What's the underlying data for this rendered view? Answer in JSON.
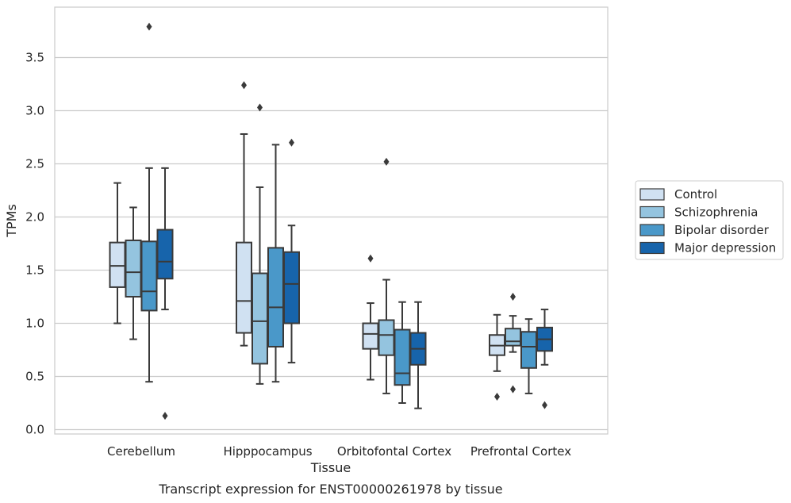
{
  "chart_data": {
    "type": "box",
    "title": "",
    "caption": "Transcript expression for ENST00000261978 by tissue",
    "xlabel": "Tissue",
    "ylabel": "TPMs",
    "ylim": [
      -0.04,
      3.98
    ],
    "yticks": [
      "0.0",
      "0.5",
      "1.0",
      "1.5",
      "2.0",
      "2.5",
      "3.0",
      "3.5"
    ],
    "grid": "horizontal",
    "legend_position": "right",
    "categories": [
      "Cerebellum",
      "Hipppocampus",
      "Orbitofontal Cortex",
      "Prefrontal Cortex"
    ],
    "series": [
      {
        "name": "Control",
        "color": "#d0e1f2",
        "boxes": [
          {
            "whislo": 1.0,
            "q1": 1.34,
            "median": 1.54,
            "q3": 1.76,
            "whishi": 2.32,
            "fliers": []
          },
          {
            "whislo": 0.79,
            "q1": 0.91,
            "median": 1.21,
            "q3": 1.76,
            "whishi": 2.78,
            "fliers": [
              3.24
            ]
          },
          {
            "whislo": 0.47,
            "q1": 0.76,
            "median": 0.9,
            "q3": 1.0,
            "whishi": 1.19,
            "fliers": [
              1.61
            ]
          },
          {
            "whislo": 0.55,
            "q1": 0.7,
            "median": 0.79,
            "q3": 0.89,
            "whishi": 1.08,
            "fliers": [
              0.31
            ]
          }
        ]
      },
      {
        "name": "Schizophrenia",
        "color": "#94c4df",
        "boxes": [
          {
            "whislo": 0.85,
            "q1": 1.25,
            "median": 1.48,
            "q3": 1.78,
            "whishi": 2.09,
            "fliers": []
          },
          {
            "whislo": 0.43,
            "q1": 0.62,
            "median": 1.02,
            "q3": 1.47,
            "whishi": 2.28,
            "fliers": [
              3.03
            ]
          },
          {
            "whislo": 0.34,
            "q1": 0.7,
            "median": 0.89,
            "q3": 1.03,
            "whishi": 1.41,
            "fliers": [
              2.52
            ]
          },
          {
            "whislo": 0.73,
            "q1": 0.79,
            "median": 0.83,
            "q3": 0.95,
            "whishi": 1.07,
            "fliers": [
              1.25,
              0.38
            ]
          }
        ]
      },
      {
        "name": "Bipolar disorder",
        "color": "#4a98c9",
        "boxes": [
          {
            "whislo": 0.45,
            "q1": 1.12,
            "median": 1.3,
            "q3": 1.77,
            "whishi": 2.46,
            "fliers": [
              3.79
            ]
          },
          {
            "whislo": 0.45,
            "q1": 0.78,
            "median": 1.15,
            "q3": 1.71,
            "whishi": 2.68,
            "fliers": []
          },
          {
            "whislo": 0.25,
            "q1": 0.42,
            "median": 0.53,
            "q3": 0.94,
            "whishi": 1.2,
            "fliers": []
          },
          {
            "whislo": 0.34,
            "q1": 0.58,
            "median": 0.78,
            "q3": 0.92,
            "whishi": 1.04,
            "fliers": []
          }
        ]
      },
      {
        "name": "Major depression",
        "color": "#1764ab",
        "boxes": [
          {
            "whislo": 1.13,
            "q1": 1.42,
            "median": 1.58,
            "q3": 1.88,
            "whishi": 2.46,
            "fliers": [
              0.13
            ]
          },
          {
            "whislo": 0.63,
            "q1": 1.0,
            "median": 1.37,
            "q3": 1.67,
            "whishi": 1.92,
            "fliers": [
              2.7
            ]
          },
          {
            "whislo": 0.2,
            "q1": 0.61,
            "median": 0.76,
            "q3": 0.91,
            "whishi": 1.2,
            "fliers": []
          },
          {
            "whislo": 0.61,
            "q1": 0.74,
            "median": 0.85,
            "q3": 0.96,
            "whishi": 1.13,
            "fliers": [
              0.23
            ]
          }
        ]
      }
    ]
  }
}
